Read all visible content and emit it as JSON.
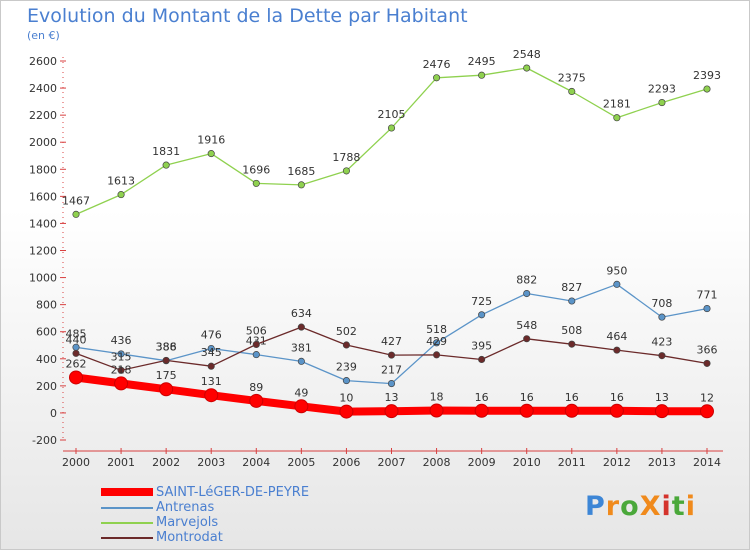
{
  "header": {
    "title": "Evolution du Montant de la Dette par Habitant",
    "subtitle": "(en €)"
  },
  "logo": {
    "text": "ProXiti",
    "colors": [
      "#3d86d6",
      "#f08a1c",
      "#4aa83a",
      "#f08a1c",
      "#d4332c",
      "#4aa83a",
      "#f08a1c"
    ]
  },
  "chart_data": {
    "type": "line",
    "title": "Evolution du Montant de la Dette par Habitant",
    "subtitle": "(en €)",
    "categories": [
      "2000",
      "2001",
      "2002",
      "2003",
      "2004",
      "2005",
      "2006",
      "2007",
      "2008",
      "2009",
      "2010",
      "2011",
      "2012",
      "2013",
      "2014"
    ],
    "ylim": [
      -200,
      2600
    ],
    "yticks": [
      -200,
      0,
      200,
      400,
      600,
      800,
      1000,
      1200,
      1400,
      1600,
      1800,
      2000,
      2200,
      2400,
      2600
    ],
    "grid": false,
    "legend_position": "bottom-left",
    "series": [
      {
        "name": "SAINT-LéGER-DE-PEYRE",
        "color": "#ff0000",
        "thick": true,
        "values": [
          262,
          218,
          175,
          131,
          89,
          49,
          10,
          13,
          18,
          16,
          16,
          16,
          16,
          13,
          12
        ]
      },
      {
        "name": "Antrenas",
        "color": "#5b94c8",
        "thick": false,
        "values": [
          485,
          436,
          386,
          476,
          431,
          381,
          239,
          217,
          518,
          725,
          882,
          827,
          950,
          708,
          771
        ]
      },
      {
        "name": "Marvejols",
        "color": "#8fd14f",
        "thick": false,
        "values": [
          1467,
          1613,
          1831,
          1916,
          1696,
          1685,
          1788,
          2105,
          2476,
          2495,
          2548,
          2375,
          2181,
          2293,
          2393
        ]
      },
      {
        "name": "Montrodat",
        "color": "#6b2a2a",
        "thick": false,
        "values": [
          440,
          315,
          388,
          345,
          506,
          634,
          502,
          427,
          429,
          395,
          548,
          508,
          464,
          423,
          366
        ]
      }
    ]
  }
}
